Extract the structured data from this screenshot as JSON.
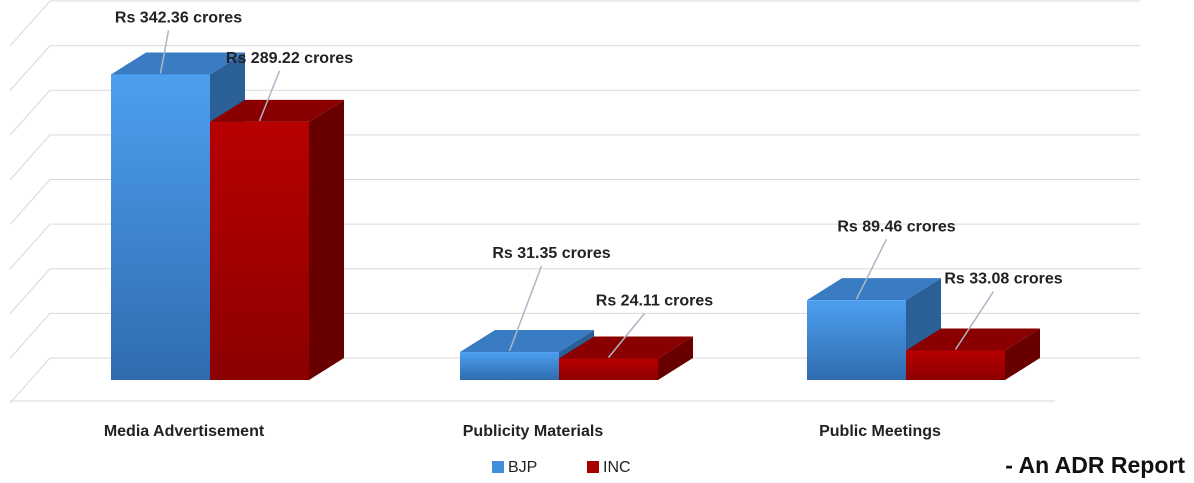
{
  "chart_data": {
    "type": "bar3d",
    "categories": [
      "Media Advertisement",
      "Publicity Materials",
      "Public Meetings"
    ],
    "series": [
      {
        "name": "BJP",
        "color": "#3f8fdc",
        "values": [
          342.36,
          31.35,
          89.46
        ],
        "value_labels": [
          "Rs 342.36 crores",
          "Rs 31.35 crores",
          "Rs 89.46 crores"
        ]
      },
      {
        "name": "INC",
        "color": "#a80000",
        "values": [
          289.22,
          24.11,
          33.08
        ],
        "value_labels": [
          "Rs 289.22 crores",
          "Rs 24.11 crores",
          "Rs 33.08 crores"
        ]
      }
    ],
    "ylim": [
      0,
      400
    ],
    "yticks": [
      0,
      50,
      100,
      150,
      200,
      250,
      300,
      350,
      400
    ],
    "grid": true,
    "legend": "bottom",
    "annotation": "- An ADR Report"
  }
}
